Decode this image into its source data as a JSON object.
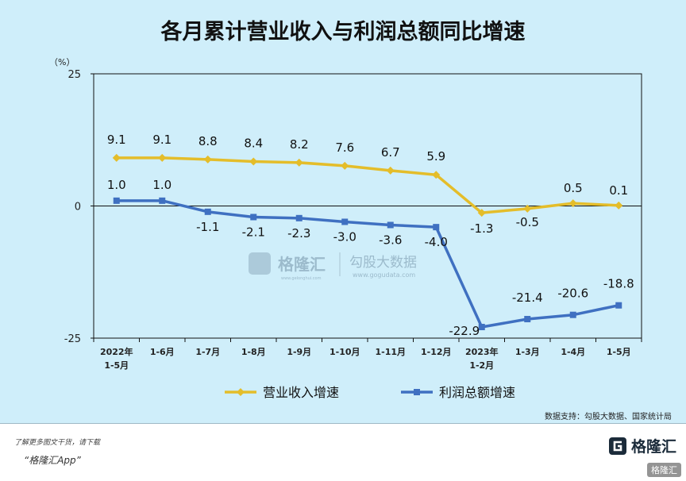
{
  "chart_data": {
    "type": "line",
    "title": "各月累计营业收入与利润总额同比增速",
    "unit_label": "（%）",
    "ylim": [
      -25,
      25
    ],
    "y_ticks": [
      {
        "value": 25,
        "label": "25"
      },
      {
        "value": 0,
        "label": "0"
      },
      {
        "value": -25,
        "label": "-25"
      }
    ],
    "categories": [
      [
        "2022年",
        "1-5月"
      ],
      [
        "1-6月"
      ],
      [
        "1-7月"
      ],
      [
        "1-8月"
      ],
      [
        "1-9月"
      ],
      [
        "1-10月"
      ],
      [
        "1-11月"
      ],
      [
        "1-12月"
      ],
      [
        "2023年",
        "1-2月"
      ],
      [
        "1-3月"
      ],
      [
        "1-4月"
      ],
      [
        "1-5月"
      ]
    ],
    "series": [
      {
        "name": "营业收入增速",
        "color": "#e4bd2a",
        "values": [
          9.1,
          9.1,
          8.8,
          8.4,
          8.2,
          7.6,
          6.7,
          5.9,
          -1.3,
          -0.5,
          0.5,
          0.1
        ],
        "labels": [
          "9.1",
          "9.1",
          "8.8",
          "8.4",
          "8.2",
          "7.6",
          "6.7",
          "5.9",
          "-1.3",
          "-0.5",
          "0.5",
          "0.1"
        ]
      },
      {
        "name": "利润总额增速",
        "color": "#3f70c1",
        "values": [
          1.0,
          1.0,
          -1.1,
          -2.1,
          -2.3,
          -3.0,
          -3.6,
          -4.0,
          -22.9,
          -21.4,
          -20.6,
          -18.8
        ],
        "labels": [
          "1.0",
          "1.0",
          "-1.1",
          "-2.1",
          "-2.3",
          "-3.0",
          "-3.6",
          "-4.0",
          "-22.9",
          "-21.4",
          "-20.6",
          "-18.8"
        ]
      }
    ],
    "grid": false,
    "legend_position": "bottom"
  },
  "watermark": {
    "brand": "格隆汇",
    "brand_url": "www.gelonghui.com",
    "partner": "勾股大数据",
    "partner_url": "www.gogudata.com"
  },
  "source_note": "数据支持：勾股大数据、国家统计局",
  "footer": {
    "note": "了解更多图文干货，请下载",
    "app": "“格隆汇App”",
    "logo_text": "格隆汇",
    "badge": "格隆汇"
  },
  "colors": {
    "background": "#cfeefa",
    "revenue": "#e4bd2a",
    "profit": "#3f70c1"
  }
}
